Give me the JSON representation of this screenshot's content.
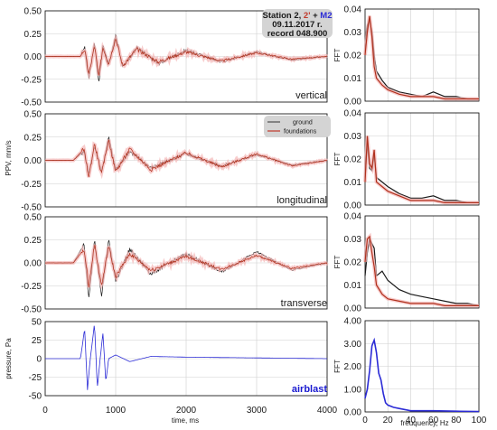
{
  "info_box": {
    "line1_prefix": "Station 2, ",
    "line1_red": "2'",
    "line1_plus": " + ",
    "line1_blue": "M2",
    "date": "09.11.2017 r.",
    "record": "record 048.900"
  },
  "legend": {
    "items": [
      {
        "label": "ground",
        "color": "#333333"
      },
      {
        "label": "foundations",
        "color": "#c0392b"
      }
    ]
  },
  "colors": {
    "ground": "#1a1a1a",
    "foundations": "#b0301c",
    "foundations_envelope": "#f4b6b6",
    "airblast": "#2b2bd6",
    "airblast_label": "#1a1ad0",
    "grid": "#cfcfcf"
  },
  "left_xaxis": {
    "label": "time, ms",
    "ticks": [
      "0",
      "1000",
      "2000",
      "3000",
      "4000"
    ]
  },
  "right_xaxis": {
    "label": "freuquency, Hz",
    "ticks": [
      "0",
      "20",
      "40",
      "60",
      "80",
      "100"
    ]
  },
  "ppv_ylabel": "PPV, mm/s",
  "pressure_ylabel": "pressure, Pa",
  "fft_ylabel": "FFT",
  "chart_data": [
    {
      "type": "line",
      "title": "",
      "panel_label": "vertical",
      "xlabel": "",
      "ylabel": "",
      "xlim": [
        0,
        4000
      ],
      "ylim": [
        -0.5,
        0.5
      ],
      "ytick_labels": [
        "0.50",
        "0.25",
        "0.00",
        "-0.25",
        "-0.50"
      ],
      "series": [
        {
          "name": "ground",
          "x": [
            0,
            500,
            560,
            620,
            700,
            760,
            820,
            900,
            1000,
            1100,
            1300,
            1600,
            2000,
            2500,
            3000,
            3500,
            4000
          ],
          "y": [
            0.0,
            0.0,
            0.1,
            -0.25,
            0.15,
            -0.3,
            0.12,
            -0.1,
            0.25,
            -0.12,
            0.1,
            -0.08,
            0.07,
            -0.06,
            0.05,
            -0.04,
            0.0
          ]
        },
        {
          "name": "foundations",
          "x": [
            0,
            500,
            560,
            620,
            700,
            760,
            820,
            900,
            1000,
            1100,
            1300,
            1600,
            2000,
            2500,
            3000,
            3500,
            4000
          ],
          "y": [
            0.0,
            0.0,
            0.08,
            -0.2,
            0.12,
            -0.22,
            0.1,
            -0.08,
            0.2,
            -0.1,
            0.08,
            -0.06,
            0.05,
            -0.05,
            0.04,
            -0.03,
            0.0
          ]
        }
      ]
    },
    {
      "type": "line",
      "title": "",
      "panel_label": "longitudinal",
      "xlim": [
        0,
        4000
      ],
      "ylim": [
        -0.5,
        0.5
      ],
      "ytick_labels": [
        "0.50",
        "0.25",
        "0.00",
        "-0.25",
        "-0.50"
      ],
      "series": [
        {
          "name": "ground",
          "x": [
            0,
            400,
            550,
            620,
            700,
            800,
            900,
            1000,
            1200,
            1500,
            2000,
            2500,
            3000,
            3500,
            4000
          ],
          "y": [
            0.0,
            0.0,
            0.1,
            -0.15,
            0.15,
            -0.12,
            0.25,
            -0.1,
            0.1,
            -0.08,
            0.07,
            -0.06,
            0.06,
            -0.05,
            0.0
          ]
        },
        {
          "name": "foundations",
          "x": [
            0,
            400,
            550,
            620,
            700,
            800,
            900,
            1000,
            1200,
            1500,
            2000,
            2500,
            3000,
            3500,
            4000
          ],
          "y": [
            0.0,
            0.0,
            0.12,
            -0.18,
            0.18,
            -0.15,
            0.22,
            -0.12,
            0.12,
            -0.1,
            0.08,
            -0.07,
            0.07,
            -0.06,
            0.0
          ]
        }
      ]
    },
    {
      "type": "line",
      "title": "",
      "panel_label": "transverse",
      "xlim": [
        0,
        4000
      ],
      "ylim": [
        -0.5,
        0.5
      ],
      "ytick_labels": [
        "0.50",
        "0.25",
        "0.00",
        "-0.25",
        "-0.50"
      ],
      "series": [
        {
          "name": "ground",
          "x": [
            0,
            400,
            550,
            620,
            700,
            800,
            900,
            1000,
            1200,
            1500,
            2000,
            2500,
            3000,
            3500,
            4000
          ],
          "y": [
            0.0,
            0.0,
            0.2,
            -0.4,
            0.25,
            -0.35,
            0.25,
            -0.2,
            0.15,
            -0.12,
            0.1,
            -0.1,
            0.12,
            -0.08,
            0.0
          ]
        },
        {
          "name": "foundations",
          "x": [
            0,
            400,
            550,
            620,
            700,
            800,
            900,
            1000,
            1200,
            1500,
            2000,
            2500,
            3000,
            3500,
            4000
          ],
          "y": [
            0.0,
            0.0,
            0.15,
            -0.25,
            0.2,
            -0.25,
            0.18,
            -0.15,
            0.1,
            -0.08,
            0.07,
            -0.07,
            0.08,
            -0.06,
            0.0
          ]
        }
      ]
    },
    {
      "type": "line",
      "title": "",
      "panel_label": "airblast",
      "xlabel": "time, ms",
      "ylabel": "pressure, Pa",
      "xlim": [
        0,
        4000
      ],
      "ylim": [
        -50,
        50
      ],
      "ytick_labels": [
        "50",
        "25",
        "0",
        "-25",
        "-50"
      ],
      "series": [
        {
          "name": "airblast",
          "x": [
            0,
            500,
            560,
            600,
            640,
            700,
            740,
            780,
            820,
            860,
            900,
            1000,
            1200,
            1500,
            2000,
            3000,
            4000
          ],
          "y": [
            0,
            0,
            40,
            -42,
            0,
            47,
            -40,
            0,
            35,
            -32,
            0,
            5,
            -4,
            3,
            2,
            1,
            0
          ]
        }
      ]
    },
    {
      "type": "line",
      "title": "",
      "xlabel": "",
      "ylabel": "FFT",
      "xlim": [
        0,
        100
      ],
      "ylim": [
        0,
        0.04
      ],
      "ytick_labels": [
        "0.04",
        "0.03",
        "0.02",
        "0.01",
        "0.00"
      ],
      "series": [
        {
          "name": "ground",
          "x": [
            0,
            2,
            4,
            6,
            8,
            10,
            15,
            20,
            30,
            40,
            50,
            60,
            70,
            80,
            90,
            100
          ],
          "y": [
            0.026,
            0.033,
            0.035,
            0.03,
            0.02,
            0.013,
            0.009,
            0.006,
            0.004,
            0.003,
            0.002,
            0.004,
            0.002,
            0.002,
            0.001,
            0.001
          ]
        },
        {
          "name": "foundations",
          "x": [
            0,
            2,
            4,
            6,
            8,
            10,
            15,
            20,
            30,
            40,
            50,
            60,
            70,
            80,
            90,
            100
          ],
          "y": [
            0.02,
            0.03,
            0.037,
            0.028,
            0.015,
            0.01,
            0.007,
            0.005,
            0.003,
            0.002,
            0.002,
            0.002,
            0.001,
            0.001,
            0.001,
            0.001
          ]
        }
      ]
    },
    {
      "type": "line",
      "title": "",
      "ylabel": "FFT",
      "xlim": [
        0,
        100
      ],
      "ylim": [
        0,
        0.04
      ],
      "ytick_labels": [
        "0.04",
        "0.03",
        "0.02",
        "0.01",
        "0.00"
      ],
      "series": [
        {
          "name": "ground",
          "x": [
            0,
            2,
            4,
            6,
            8,
            10,
            15,
            20,
            30,
            40,
            50,
            60,
            70,
            80,
            90,
            100
          ],
          "y": [
            0.012,
            0.027,
            0.016,
            0.015,
            0.022,
            0.012,
            0.01,
            0.008,
            0.005,
            0.003,
            0.003,
            0.004,
            0.002,
            0.002,
            0.001,
            0.001
          ]
        },
        {
          "name": "foundations",
          "x": [
            0,
            2,
            4,
            6,
            8,
            10,
            15,
            20,
            30,
            40,
            50,
            60,
            70,
            80,
            90,
            100
          ],
          "y": [
            0.01,
            0.03,
            0.018,
            0.016,
            0.024,
            0.01,
            0.008,
            0.006,
            0.004,
            0.002,
            0.002,
            0.002,
            0.001,
            0.001,
            0.001,
            0.001
          ]
        }
      ]
    },
    {
      "type": "line",
      "title": "",
      "ylabel": "FFT",
      "xlim": [
        0,
        100
      ],
      "ylim": [
        0,
        0.04
      ],
      "ytick_labels": [
        "0.04",
        "0.03",
        "0.02",
        "0.01",
        "0.00"
      ],
      "series": [
        {
          "name": "ground",
          "x": [
            0,
            2,
            4,
            6,
            8,
            10,
            15,
            20,
            30,
            40,
            50,
            60,
            70,
            80,
            90,
            100
          ],
          "y": [
            0.014,
            0.024,
            0.03,
            0.028,
            0.026,
            0.014,
            0.016,
            0.012,
            0.008,
            0.006,
            0.005,
            0.004,
            0.003,
            0.002,
            0.002,
            0.001
          ]
        },
        {
          "name": "foundations",
          "x": [
            0,
            2,
            4,
            6,
            8,
            10,
            15,
            20,
            30,
            40,
            50,
            60,
            70,
            80,
            90,
            100
          ],
          "y": [
            0.02,
            0.03,
            0.031,
            0.024,
            0.018,
            0.01,
            0.006,
            0.004,
            0.003,
            0.002,
            0.002,
            0.002,
            0.001,
            0.001,
            0.001,
            0.001
          ]
        }
      ]
    },
    {
      "type": "line",
      "title": "",
      "xlabel": "freuquency, Hz",
      "ylabel": "FFT",
      "xlim": [
        0,
        100
      ],
      "ylim": [
        0,
        4
      ],
      "ytick_labels": [
        "4.00",
        "3.00",
        "2.00",
        "1.00",
        "0.00"
      ],
      "series": [
        {
          "name": "airblast",
          "x": [
            0,
            2,
            4,
            6,
            8,
            10,
            12,
            14,
            16,
            18,
            20,
            25,
            30,
            40,
            60,
            80,
            100
          ],
          "y": [
            0.6,
            1.0,
            1.8,
            2.9,
            3.15,
            2.6,
            1.7,
            1.4,
            0.8,
            0.4,
            0.3,
            0.2,
            0.15,
            0.05,
            0.05,
            0.03,
            0.02
          ]
        }
      ]
    }
  ]
}
